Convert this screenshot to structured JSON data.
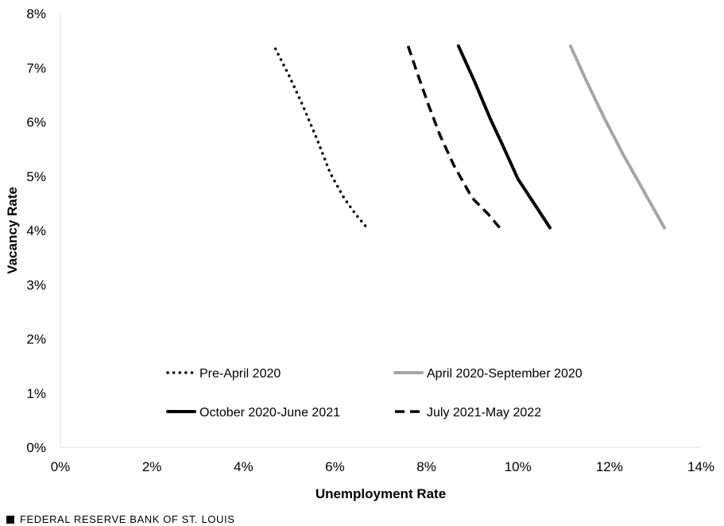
{
  "chart_data": {
    "type": "line",
    "xlabel": "Unemployment Rate",
    "ylabel": "Vacancy Rate",
    "xlim": [
      0,
      14
    ],
    "ylim": [
      0,
      8
    ],
    "x_ticks": [
      "0%",
      "2%",
      "4%",
      "6%",
      "8%",
      "10%",
      "12%",
      "14%"
    ],
    "y_ticks": [
      "0%",
      "1%",
      "2%",
      "3%",
      "4%",
      "5%",
      "6%",
      "7%",
      "8%"
    ],
    "grid": false,
    "legend_position": "bottom-center",
    "series": [
      {
        "name": "Pre-April 2020",
        "color": "#000000",
        "style": "dotted",
        "points": [
          [
            4.7,
            7.35
          ],
          [
            5.0,
            6.85
          ],
          [
            5.3,
            6.3
          ],
          [
            5.6,
            5.7
          ],
          [
            5.9,
            5.05
          ],
          [
            6.2,
            4.6
          ],
          [
            6.45,
            4.3
          ],
          [
            6.7,
            4.05
          ]
        ]
      },
      {
        "name": "April 2020-September 2020",
        "color": "#a6a6a6",
        "style": "solid",
        "points": [
          [
            11.15,
            7.4
          ],
          [
            11.5,
            6.75
          ],
          [
            11.9,
            6.05
          ],
          [
            12.3,
            5.4
          ],
          [
            12.6,
            4.95
          ],
          [
            12.9,
            4.5
          ],
          [
            13.2,
            4.05
          ]
        ]
      },
      {
        "name": "October 2020-June 2021",
        "color": "#000000",
        "style": "solid",
        "points": [
          [
            8.7,
            7.4
          ],
          [
            9.05,
            6.75
          ],
          [
            9.4,
            6.05
          ],
          [
            9.65,
            5.6
          ],
          [
            10.0,
            4.95
          ],
          [
            10.35,
            4.5
          ],
          [
            10.7,
            4.05
          ]
        ]
      },
      {
        "name": "July 2021-May 2022",
        "color": "#000000",
        "style": "dashed",
        "points": [
          [
            7.6,
            7.4
          ],
          [
            7.8,
            6.9
          ],
          [
            8.05,
            6.3
          ],
          [
            8.3,
            5.75
          ],
          [
            8.6,
            5.2
          ],
          [
            9.0,
            4.6
          ],
          [
            9.35,
            4.3
          ],
          [
            9.6,
            4.05
          ]
        ]
      }
    ]
  },
  "footer": {
    "source": "FEDERAL RESERVE BANK OF ST. LOUIS"
  }
}
